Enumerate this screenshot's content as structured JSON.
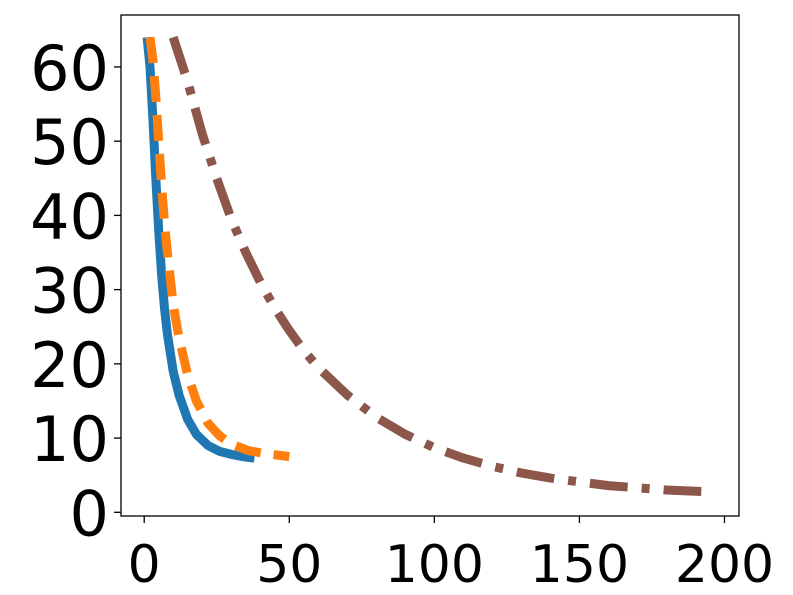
{
  "chart_data": {
    "type": "line",
    "title": "",
    "xlabel": "",
    "ylabel": "",
    "xlim": [
      -8,
      205
    ],
    "ylim": [
      -0.5,
      67
    ],
    "xticks": [
      0,
      50,
      100,
      150,
      200
    ],
    "xtick_labels": [
      "0",
      "50",
      "100",
      "150",
      "200"
    ],
    "yticks": [
      0,
      10,
      20,
      30,
      40,
      50,
      60
    ],
    "ytick_labels": [
      "0",
      "10",
      "20",
      "30",
      "40",
      "50",
      "60"
    ],
    "grid": false,
    "legend": "none",
    "series": [
      {
        "color": "#1f77b4",
        "style": "solid",
        "x": [
          1,
          2,
          3,
          4,
          5,
          6,
          7,
          8,
          10,
          12,
          15,
          18,
          22,
          26,
          30,
          34,
          38
        ],
        "y": [
          64,
          60,
          53,
          45,
          38,
          32,
          27.5,
          24,
          19,
          15.8,
          12.5,
          10.5,
          9,
          8.2,
          7.8,
          7.5,
          7.3
        ]
      },
      {
        "color": "#ff7f0e",
        "style": "dashed",
        "x": [
          2,
          3,
          4,
          5,
          6,
          7,
          8,
          10,
          12,
          15,
          18,
          22,
          26,
          30,
          36,
          42,
          50
        ],
        "y": [
          64,
          61,
          56,
          50,
          44,
          39,
          35,
          28,
          23.5,
          18.5,
          15,
          12,
          10.3,
          9.2,
          8.3,
          7.9,
          7.5
        ]
      },
      {
        "color": "#8c564b",
        "style": "dashdot",
        "x": [
          10,
          15,
          20,
          25,
          30,
          35,
          40,
          45,
          50,
          55,
          60,
          70,
          80,
          90,
          100,
          110,
          120,
          130,
          140,
          150,
          160,
          170,
          180,
          192
        ],
        "y": [
          64,
          58,
          51,
          45,
          39.5,
          35,
          31,
          27.5,
          24.5,
          21.8,
          19.5,
          15.8,
          12.8,
          10.5,
          8.7,
          7.3,
          6.2,
          5.3,
          4.6,
          4.1,
          3.6,
          3.3,
          3.0,
          2.8
        ]
      }
    ]
  }
}
